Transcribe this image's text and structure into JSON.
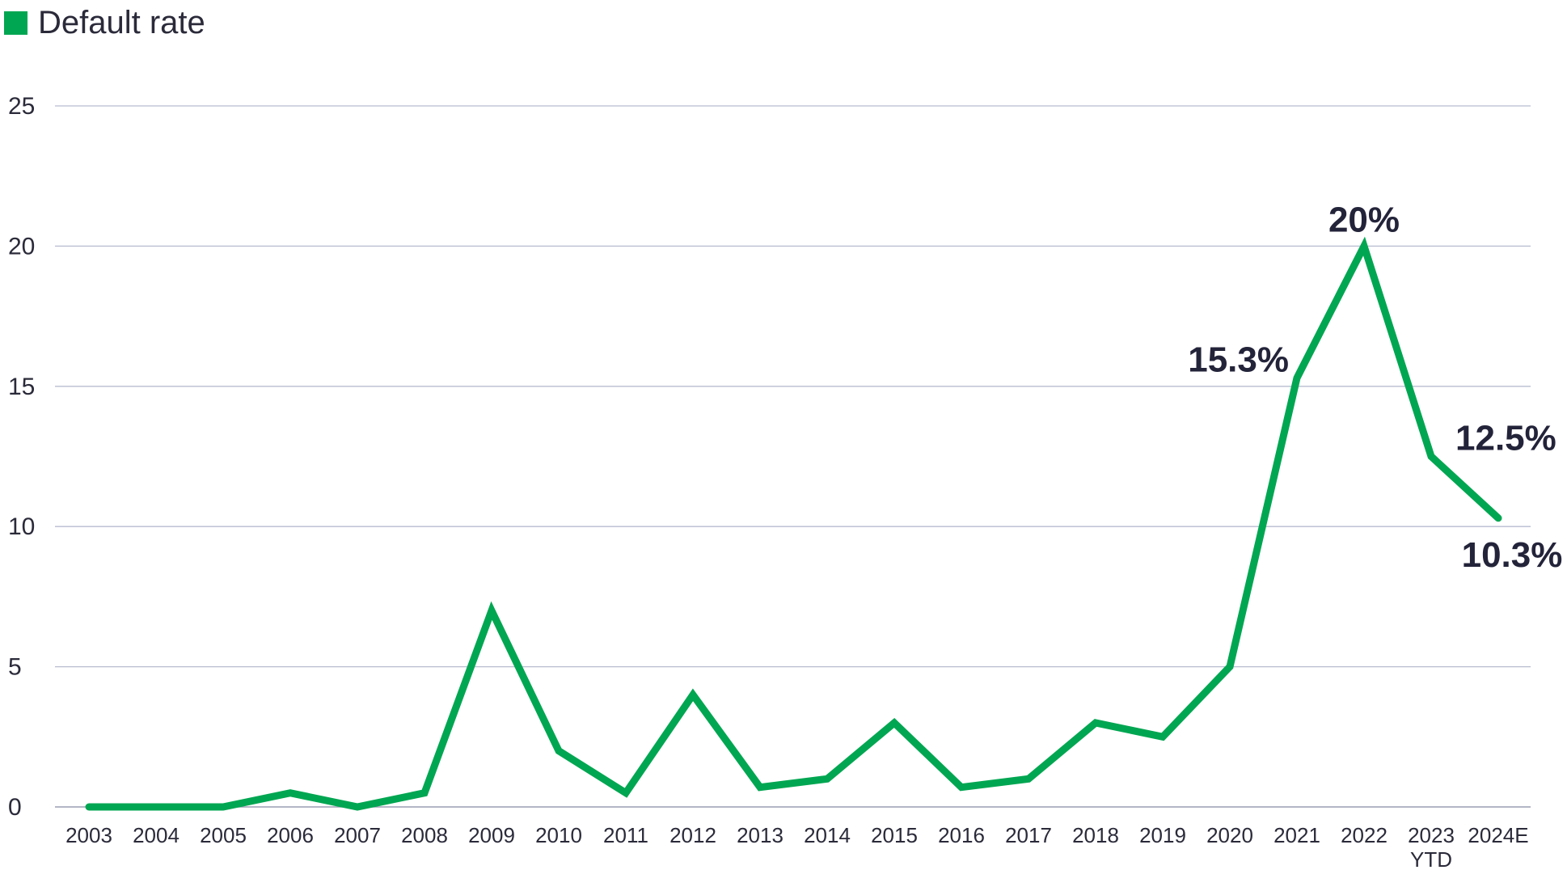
{
  "legend": {
    "label": "Default rate",
    "color": "#00a651"
  },
  "chart_data": {
    "type": "line",
    "title": "",
    "xlabel": "",
    "ylabel": "",
    "ylim": [
      0,
      25
    ],
    "yticks": [
      0,
      5,
      10,
      15,
      20,
      25
    ],
    "grid": true,
    "legend_position": "top-left",
    "categories": [
      "2003",
      "2004",
      "2005",
      "2006",
      "2007",
      "2008",
      "2009",
      "2010",
      "2011",
      "2012",
      "2013",
      "2014",
      "2015",
      "2016",
      "2017",
      "2018",
      "2019",
      "2020",
      "2021",
      "2022",
      "2023",
      "2024E"
    ],
    "category_sublabels": [
      "",
      "",
      "",
      "",
      "",
      "",
      "",
      "",
      "",
      "",
      "",
      "",
      "",
      "",
      "",
      "",
      "",
      "",
      "",
      "",
      "YTD",
      ""
    ],
    "series": [
      {
        "name": "Default rate",
        "color": "#00a651",
        "values": [
          0,
          0,
          0,
          0.5,
          0,
          0.5,
          7,
          2,
          0.5,
          4,
          0.7,
          1,
          3,
          0.7,
          1,
          3,
          2.5,
          5,
          15.3,
          20,
          12.5,
          10.3
        ]
      }
    ],
    "annotations": [
      {
        "index": 18,
        "text": "15.3%",
        "placement": "left"
      },
      {
        "index": 19,
        "text": "20%",
        "placement": "above"
      },
      {
        "index": 20,
        "text": "12.5%",
        "placement": "above-right"
      },
      {
        "index": 21,
        "text": "10.3%",
        "placement": "below"
      }
    ]
  }
}
